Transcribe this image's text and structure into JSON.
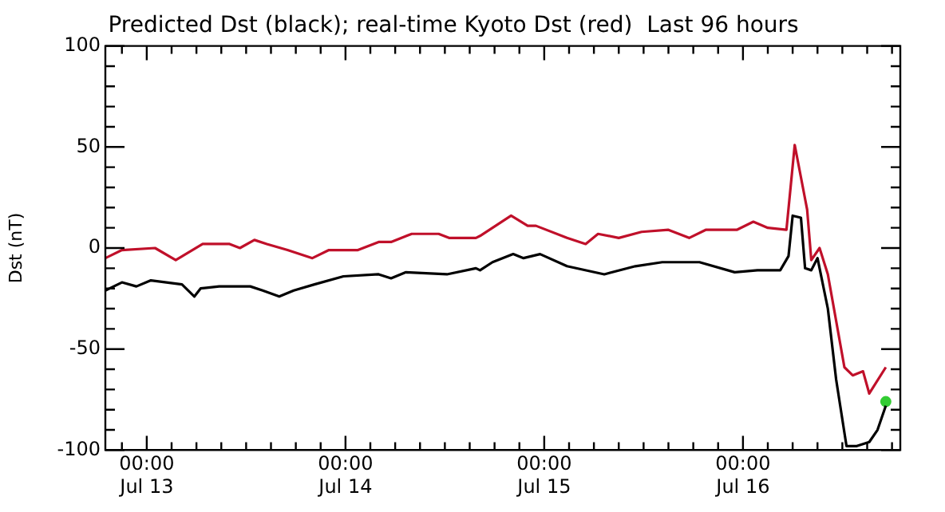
{
  "chart_data": {
    "type": "line",
    "title": "Predicted Dst (black); real-time Kyoto Dst (red)  Last 96 hours",
    "ylabel": "Dst (nT)",
    "xlim": [
      "--07-12T19:00",
      "--07-16T19:00"
    ],
    "xticks": [
      {
        "value": "--07-12T21:00",
        "label": null
      },
      {
        "value": "--07-13T00:00",
        "label": "00:00 Jul 13"
      },
      {
        "value": "--07-13T03:00",
        "label": null
      },
      {
        "value": "--07-13T06:00",
        "label": null
      },
      {
        "value": "--07-13T09:00",
        "label": null
      },
      {
        "value": "--07-13T12:00",
        "label": null
      },
      {
        "value": "--07-13T15:00",
        "label": null
      },
      {
        "value": "--07-13T18:00",
        "label": null
      },
      {
        "value": "--07-13T21:00",
        "label": null
      },
      {
        "value": "--07-14T00:00",
        "label": "00:00 Jul 14"
      },
      {
        "value": "--07-14T03:00",
        "label": null
      },
      {
        "value": "--07-14T06:00",
        "label": null
      },
      {
        "value": "--07-14T09:00",
        "label": null
      },
      {
        "value": "--07-14T12:00",
        "label": null
      },
      {
        "value": "--07-14T15:00",
        "label": null
      },
      {
        "value": "--07-14T18:00",
        "label": null
      },
      {
        "value": "--07-14T21:00",
        "label": null
      },
      {
        "value": "--07-15T00:00",
        "label": "00:00 Jul 15"
      },
      {
        "value": "--07-15T03:00",
        "label": null
      },
      {
        "value": "--07-15T06:00",
        "label": null
      },
      {
        "value": "--07-15T09:00",
        "label": null
      },
      {
        "value": "--07-15T12:00",
        "label": null
      },
      {
        "value": "--07-15T15:00",
        "label": null
      },
      {
        "value": "--07-15T18:00",
        "label": null
      },
      {
        "value": "--07-15T21:00",
        "label": null
      },
      {
        "value": "--07-16T00:00",
        "label": "00:00 Jul 16"
      },
      {
        "value": "--07-16T03:00",
        "label": null
      },
      {
        "value": "--07-16T06:00",
        "label": null
      },
      {
        "value": "--07-16T09:00",
        "label": null
      },
      {
        "value": "--07-16T12:00",
        "label": null
      },
      {
        "value": "--07-16T15:00",
        "label": null
      },
      {
        "value": "--07-16T18:00",
        "label": null
      }
    ],
    "ylim": [
      -100,
      100
    ],
    "yticks": [
      -100,
      {
        "value": -90,
        "label": null
      },
      {
        "value": -80,
        "label": null
      },
      {
        "value": -70,
        "label": null
      },
      {
        "value": -60,
        "label": null
      },
      -50,
      {
        "value": -40,
        "label": null
      },
      {
        "value": -30,
        "label": null
      },
      {
        "value": -20,
        "label": null
      },
      {
        "value": -10,
        "label": null
      },
      0,
      {
        "value": 10,
        "label": null
      },
      {
        "value": 20,
        "label": null
      },
      {
        "value": 30,
        "label": null
      },
      {
        "value": 40,
        "label": null
      },
      50,
      {
        "value": 60,
        "label": null
      },
      {
        "value": 70,
        "label": null
      },
      {
        "value": 80,
        "label": null
      },
      {
        "value": 90,
        "label": null
      },
      100
    ],
    "grid": false,
    "legend": false,
    "marker": "none",
    "line_style": "solid",
    "series": [
      {
        "color": "#c0102a",
        "x": [
          "--07-12T19:00",
          "--07-12T21:00",
          "--07-13T01:00",
          "--07-13T03:30",
          "--07-13T06:45",
          "--07-13T10:00",
          "--07-13T11:15",
          "--07-13T13:00",
          "--07-13T14:30",
          "--07-13T17:00",
          "--07-13T20:00",
          "--07-13T22:00",
          "--07-14T01:30",
          "--07-14T04:00",
          "--07-14T05:30",
          "--07-14T08:00",
          "--07-14T11:15",
          "--07-14T12:30",
          "--07-14T15:45",
          "--07-14T16:15",
          "--07-14T20:00",
          "--07-14T22:00",
          "--07-14T23:00",
          "--07-15T02:45",
          "--07-15T05:00",
          "--07-15T06:30",
          "--07-15T09:00",
          "--07-15T11:45",
          "--07-15T15:00",
          "--07-15T17:30",
          "--07-15T19:30",
          "--07-15T23:15",
          "--07-16T01:15",
          "--07-16T03:00",
          "--07-16T05:15",
          "--07-16T06:15",
          "--07-16T07:45",
          "--07-16T08:15",
          "--07-16T09:15",
          "--07-16T10:15",
          "--07-16T12:15",
          "--07-16T13:15",
          "--07-16T14:30",
          "--07-16T15:15",
          "--07-16T17:15"
        ],
        "values": [
          -5,
          -1,
          0,
          -6,
          2,
          2,
          0,
          4,
          2,
          -1,
          -5,
          -1,
          -1,
          3,
          3,
          7,
          7,
          5,
          5,
          6,
          16,
          11,
          11,
          5,
          2,
          7,
          5,
          8,
          9,
          5,
          9,
          9,
          13,
          10,
          9,
          51,
          19,
          -6,
          0,
          -13,
          -59,
          -63,
          -61,
          -72,
          -59
        ]
      },
      {
        "color": "#000000",
        "x": [
          "--07-12T19:00",
          "--07-12T21:00",
          "--07-12T22:45",
          "--07-13T00:30",
          "--07-13T04:15",
          "--07-13T05:45",
          "--07-13T06:30",
          "--07-13T08:45",
          "--07-13T12:30",
          "--07-13T14:00",
          "--07-13T16:00",
          "--07-13T17:45",
          "--07-13T20:15",
          "--07-13T23:45",
          "--07-14T04:00",
          "--07-14T05:30",
          "--07-14T07:15",
          "--07-14T12:15",
          "--07-14T15:45",
          "--07-14T16:15",
          "--07-14T17:45",
          "--07-14T20:15",
          "--07-14T21:30",
          "--07-14T23:30",
          "--07-15T02:45",
          "--07-15T07:15",
          "--07-15T11:00",
          "--07-15T14:15",
          "--07-15T18:45",
          "--07-15T23:00",
          "--07-16T01:45",
          "--07-16T04:30",
          "--07-16T05:30",
          "--07-16T06:00",
          "--07-16T07:00",
          "--07-16T07:30",
          "--07-16T08:15",
          "--07-16T09:00",
          "--07-16T10:15",
          "--07-16T11:15",
          "--07-16T12:30",
          "--07-16T13:45",
          "--07-16T15:15",
          "--07-16T16:15",
          "--07-16T17:15"
        ],
        "values": [
          -21,
          -17,
          -19,
          -16,
          -18,
          -24,
          -20,
          -19,
          -19,
          -21,
          -24,
          -21,
          -18,
          -14,
          -13,
          -15,
          -12,
          -13,
          -10,
          -11,
          -7,
          -3,
          -5,
          -3,
          -9,
          -13,
          -9,
          -7,
          -7,
          -12,
          -11,
          -11,
          -4,
          16,
          15,
          -10,
          -11,
          -5,
          -30,
          -65,
          -98,
          -98,
          -96,
          -90,
          -78
        ]
      },
      {
        "type": "scatter",
        "marker": "circle",
        "color": "#33cc33",
        "x": [
          "--07-16T17:15"
        ],
        "values": [
          -76
        ]
      }
    ]
  }
}
